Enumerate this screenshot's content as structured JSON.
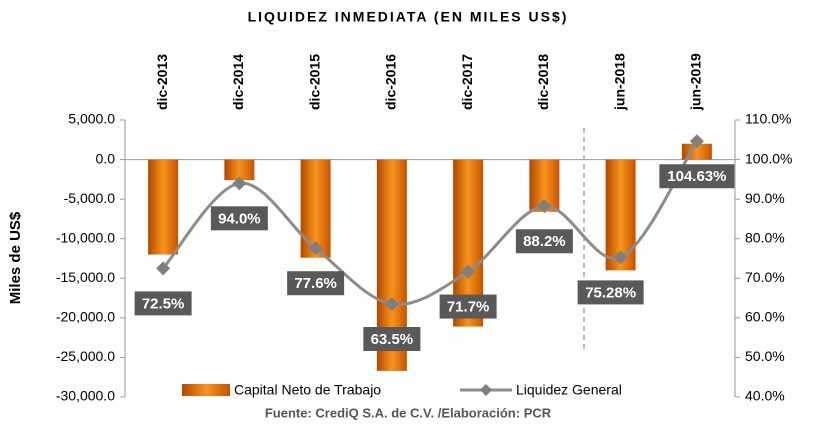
{
  "chart_data": {
    "type": "bar_line",
    "title": "LIQUIDEZ INMEDIATA (EN MILES US$)",
    "y_label": "Miles de US$",
    "source": "Fuente: CrediQ S.A. de C.V. /Elaboración: PCR",
    "categories": [
      "dic-2013",
      "dic-2014",
      "dic-2015",
      "dic-2016",
      "dic-2017",
      "dic-2018",
      "jun-2018",
      "jun-2019"
    ],
    "series": [
      {
        "name": "Capital Neto de Trabajo",
        "color": "#e36c09",
        "type": "bar",
        "values": [
          -12000,
          -2600,
          -12400,
          -26700,
          -21100,
          -6600,
          -14000,
          2000
        ]
      },
      {
        "name": "Liquidez General",
        "color": "#8c8c8c",
        "type": "line",
        "axis": "y2",
        "values": [
          72.5,
          94.0,
          77.6,
          63.5,
          71.7,
          88.2,
          75.28,
          104.63
        ],
        "value_labels": [
          "72.5%",
          "94.0%",
          "77.6%",
          "63.5%",
          "71.7%",
          "88.2%",
          "75.28%",
          "104.63%"
        ]
      }
    ],
    "ylim": [
      -30000,
      5000
    ],
    "yticks": [
      {
        "value": 5000,
        "label": "5,000.0"
      },
      {
        "value": 0,
        "label": "0.0"
      },
      {
        "value": -5000,
        "label": "-5,000.0"
      },
      {
        "value": -10000,
        "label": "-10,000.0"
      },
      {
        "value": -15000,
        "label": "-15,000.0"
      },
      {
        "value": -20000,
        "label": "-20,000.0"
      },
      {
        "value": -25000,
        "label": "-25,000.0"
      },
      {
        "value": -30000,
        "label": "-30,000.0"
      }
    ],
    "y2lim": [
      40,
      110
    ],
    "y2ticks": [
      {
        "value": 110,
        "label": "110.0%"
      },
      {
        "value": 100,
        "label": "100.0%"
      },
      {
        "value": 90,
        "label": "90.0%"
      },
      {
        "value": 80,
        "label": "80.0%"
      },
      {
        "value": 70,
        "label": "70.0%"
      },
      {
        "value": 60,
        "label": "60.0%"
      },
      {
        "value": 50,
        "label": "50.0%"
      },
      {
        "value": 40,
        "label": "40.0%"
      }
    ],
    "legend": "bottom"
  }
}
